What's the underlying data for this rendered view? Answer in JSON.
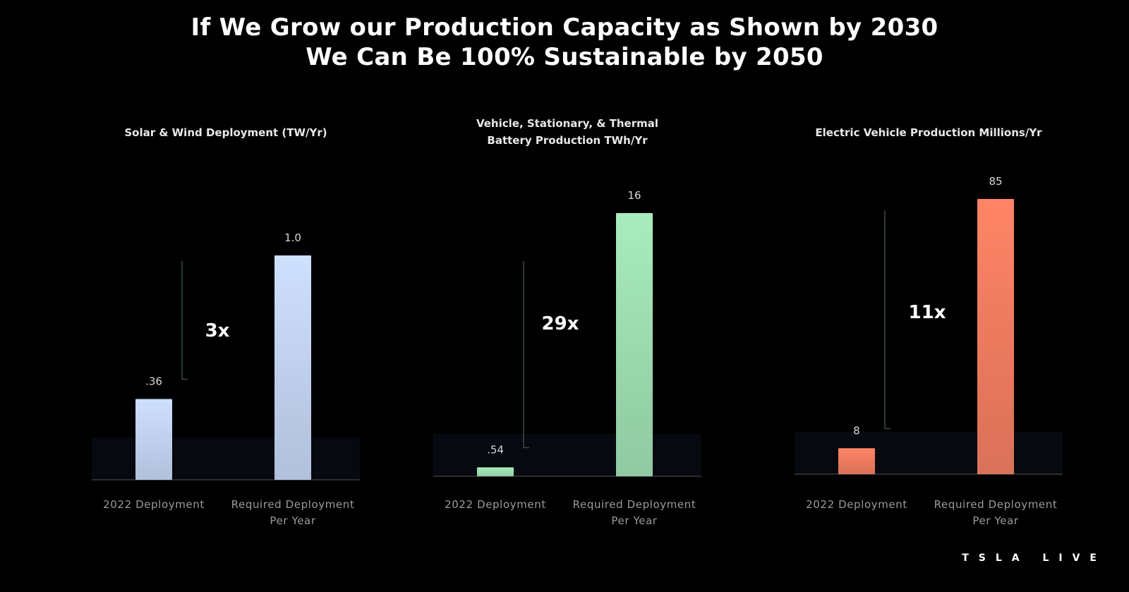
{
  "title": {
    "line1": "If We Grow our Production Capacity as Shown by 2030",
    "line2": "We Can Be 100% Sustainable by 2050"
  },
  "brand": "TSLA LIVE",
  "chart_data": [
    {
      "type": "bar",
      "title_lines": [
        "Solar & Wind Deployment (TW/Yr)"
      ],
      "categories": [
        [
          "2022 Deployment"
        ],
        [
          "Required Deployment",
          "Per Year"
        ]
      ],
      "values": [
        0.36,
        1.0
      ],
      "value_labels": [
        ".36",
        "1.0"
      ],
      "multiplier": "3x",
      "color": "#cfe0ff",
      "ylim": [
        0,
        1.0
      ]
    },
    {
      "type": "bar",
      "title_lines": [
        "Vehicle, Stationary, & Thermal",
        "Battery Production TWh/Yr"
      ],
      "categories": [
        [
          "2022 Deployment"
        ],
        [
          "Required Deployment",
          "Per Year"
        ]
      ],
      "values": [
        0.54,
        16
      ],
      "value_labels": [
        ".54",
        "16"
      ],
      "multiplier": "29x",
      "color": "#a8ecbc",
      "ylim": [
        0,
        16
      ]
    },
    {
      "type": "bar",
      "title_lines": [
        "Electric Vehicle Production Millions/Yr"
      ],
      "categories": [
        [
          "2022 Deployment"
        ],
        [
          "Required Deployment",
          "Per Year"
        ]
      ],
      "values": [
        8,
        85
      ],
      "value_labels": [
        "8",
        "85"
      ],
      "multiplier": "11x",
      "color": "#ff8466",
      "ylim": [
        0,
        85
      ]
    }
  ]
}
